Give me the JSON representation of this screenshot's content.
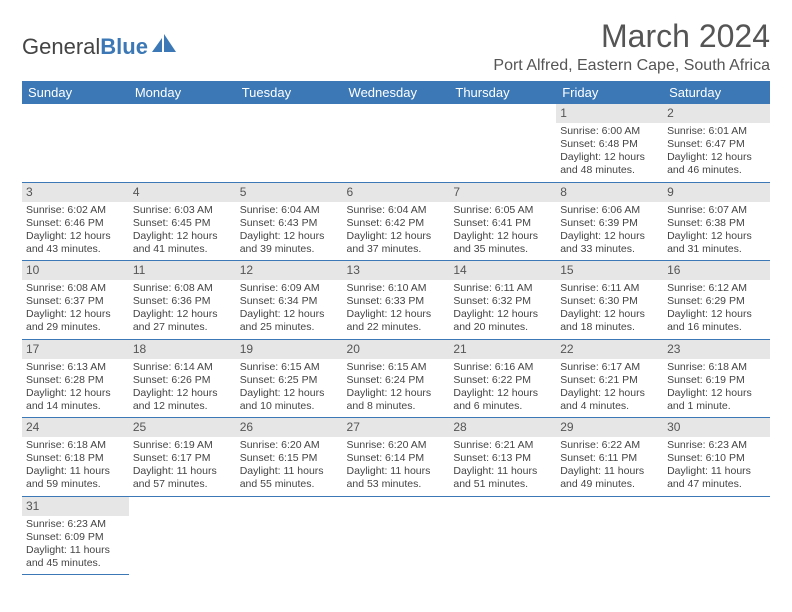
{
  "brand": {
    "part1": "General",
    "part2": "Blue"
  },
  "header": {
    "title": "March 2024",
    "location": "Port Alfred, Eastern Cape, South Africa"
  },
  "colors": {
    "header_bg": "#3b78b5",
    "header_text": "#ffffff",
    "daynum_bg": "#e6e6e6",
    "border": "#3b78b5",
    "text": "#444444"
  },
  "day_headers": [
    "Sunday",
    "Monday",
    "Tuesday",
    "Wednesday",
    "Thursday",
    "Friday",
    "Saturday"
  ],
  "weeks": [
    [
      null,
      null,
      null,
      null,
      null,
      {
        "n": "1",
        "sr": "Sunrise: 6:00 AM",
        "ss": "Sunset: 6:48 PM",
        "d1": "Daylight: 12 hours",
        "d2": "and 48 minutes."
      },
      {
        "n": "2",
        "sr": "Sunrise: 6:01 AM",
        "ss": "Sunset: 6:47 PM",
        "d1": "Daylight: 12 hours",
        "d2": "and 46 minutes."
      }
    ],
    [
      {
        "n": "3",
        "sr": "Sunrise: 6:02 AM",
        "ss": "Sunset: 6:46 PM",
        "d1": "Daylight: 12 hours",
        "d2": "and 43 minutes."
      },
      {
        "n": "4",
        "sr": "Sunrise: 6:03 AM",
        "ss": "Sunset: 6:45 PM",
        "d1": "Daylight: 12 hours",
        "d2": "and 41 minutes."
      },
      {
        "n": "5",
        "sr": "Sunrise: 6:04 AM",
        "ss": "Sunset: 6:43 PM",
        "d1": "Daylight: 12 hours",
        "d2": "and 39 minutes."
      },
      {
        "n": "6",
        "sr": "Sunrise: 6:04 AM",
        "ss": "Sunset: 6:42 PM",
        "d1": "Daylight: 12 hours",
        "d2": "and 37 minutes."
      },
      {
        "n": "7",
        "sr": "Sunrise: 6:05 AM",
        "ss": "Sunset: 6:41 PM",
        "d1": "Daylight: 12 hours",
        "d2": "and 35 minutes."
      },
      {
        "n": "8",
        "sr": "Sunrise: 6:06 AM",
        "ss": "Sunset: 6:39 PM",
        "d1": "Daylight: 12 hours",
        "d2": "and 33 minutes."
      },
      {
        "n": "9",
        "sr": "Sunrise: 6:07 AM",
        "ss": "Sunset: 6:38 PM",
        "d1": "Daylight: 12 hours",
        "d2": "and 31 minutes."
      }
    ],
    [
      {
        "n": "10",
        "sr": "Sunrise: 6:08 AM",
        "ss": "Sunset: 6:37 PM",
        "d1": "Daylight: 12 hours",
        "d2": "and 29 minutes."
      },
      {
        "n": "11",
        "sr": "Sunrise: 6:08 AM",
        "ss": "Sunset: 6:36 PM",
        "d1": "Daylight: 12 hours",
        "d2": "and 27 minutes."
      },
      {
        "n": "12",
        "sr": "Sunrise: 6:09 AM",
        "ss": "Sunset: 6:34 PM",
        "d1": "Daylight: 12 hours",
        "d2": "and 25 minutes."
      },
      {
        "n": "13",
        "sr": "Sunrise: 6:10 AM",
        "ss": "Sunset: 6:33 PM",
        "d1": "Daylight: 12 hours",
        "d2": "and 22 minutes."
      },
      {
        "n": "14",
        "sr": "Sunrise: 6:11 AM",
        "ss": "Sunset: 6:32 PM",
        "d1": "Daylight: 12 hours",
        "d2": "and 20 minutes."
      },
      {
        "n": "15",
        "sr": "Sunrise: 6:11 AM",
        "ss": "Sunset: 6:30 PM",
        "d1": "Daylight: 12 hours",
        "d2": "and 18 minutes."
      },
      {
        "n": "16",
        "sr": "Sunrise: 6:12 AM",
        "ss": "Sunset: 6:29 PM",
        "d1": "Daylight: 12 hours",
        "d2": "and 16 minutes."
      }
    ],
    [
      {
        "n": "17",
        "sr": "Sunrise: 6:13 AM",
        "ss": "Sunset: 6:28 PM",
        "d1": "Daylight: 12 hours",
        "d2": "and 14 minutes."
      },
      {
        "n": "18",
        "sr": "Sunrise: 6:14 AM",
        "ss": "Sunset: 6:26 PM",
        "d1": "Daylight: 12 hours",
        "d2": "and 12 minutes."
      },
      {
        "n": "19",
        "sr": "Sunrise: 6:15 AM",
        "ss": "Sunset: 6:25 PM",
        "d1": "Daylight: 12 hours",
        "d2": "and 10 minutes."
      },
      {
        "n": "20",
        "sr": "Sunrise: 6:15 AM",
        "ss": "Sunset: 6:24 PM",
        "d1": "Daylight: 12 hours",
        "d2": "and 8 minutes."
      },
      {
        "n": "21",
        "sr": "Sunrise: 6:16 AM",
        "ss": "Sunset: 6:22 PM",
        "d1": "Daylight: 12 hours",
        "d2": "and 6 minutes."
      },
      {
        "n": "22",
        "sr": "Sunrise: 6:17 AM",
        "ss": "Sunset: 6:21 PM",
        "d1": "Daylight: 12 hours",
        "d2": "and 4 minutes."
      },
      {
        "n": "23",
        "sr": "Sunrise: 6:18 AM",
        "ss": "Sunset: 6:19 PM",
        "d1": "Daylight: 12 hours",
        "d2": "and 1 minute."
      }
    ],
    [
      {
        "n": "24",
        "sr": "Sunrise: 6:18 AM",
        "ss": "Sunset: 6:18 PM",
        "d1": "Daylight: 11 hours",
        "d2": "and 59 minutes."
      },
      {
        "n": "25",
        "sr": "Sunrise: 6:19 AM",
        "ss": "Sunset: 6:17 PM",
        "d1": "Daylight: 11 hours",
        "d2": "and 57 minutes."
      },
      {
        "n": "26",
        "sr": "Sunrise: 6:20 AM",
        "ss": "Sunset: 6:15 PM",
        "d1": "Daylight: 11 hours",
        "d2": "and 55 minutes."
      },
      {
        "n": "27",
        "sr": "Sunrise: 6:20 AM",
        "ss": "Sunset: 6:14 PM",
        "d1": "Daylight: 11 hours",
        "d2": "and 53 minutes."
      },
      {
        "n": "28",
        "sr": "Sunrise: 6:21 AM",
        "ss": "Sunset: 6:13 PM",
        "d1": "Daylight: 11 hours",
        "d2": "and 51 minutes."
      },
      {
        "n": "29",
        "sr": "Sunrise: 6:22 AM",
        "ss": "Sunset: 6:11 PM",
        "d1": "Daylight: 11 hours",
        "d2": "and 49 minutes."
      },
      {
        "n": "30",
        "sr": "Sunrise: 6:23 AM",
        "ss": "Sunset: 6:10 PM",
        "d1": "Daylight: 11 hours",
        "d2": "and 47 minutes."
      }
    ],
    [
      {
        "n": "31",
        "sr": "Sunrise: 6:23 AM",
        "ss": "Sunset: 6:09 PM",
        "d1": "Daylight: 11 hours",
        "d2": "and 45 minutes."
      },
      null,
      null,
      null,
      null,
      null,
      null
    ]
  ]
}
